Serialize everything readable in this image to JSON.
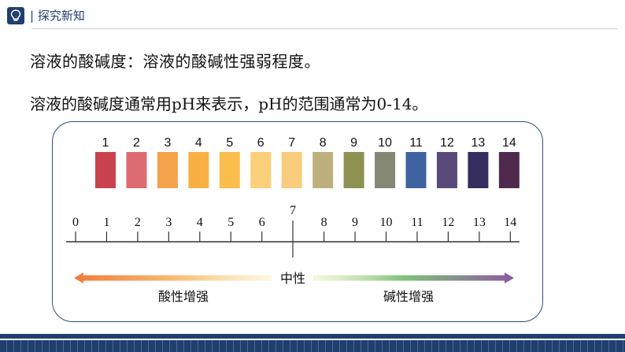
{
  "header": {
    "title": "| 探究新知",
    "icon": "lightbulb-icon"
  },
  "content": {
    "line1": "溶液的酸碱度：溶液的酸碱性强弱程度。",
    "line2": "溶液的酸碱度通常用pH来表示，pH的范围通常为0-14。"
  },
  "ph_diagram": {
    "strips": [
      {
        "label": "1",
        "color": "#c9434f"
      },
      {
        "label": "2",
        "color": "#de6b72"
      },
      {
        "label": "3",
        "color": "#f4a24b"
      },
      {
        "label": "4",
        "color": "#f8b044"
      },
      {
        "label": "5",
        "color": "#fbbd4c"
      },
      {
        "label": "6",
        "color": "#fcd07a"
      },
      {
        "label": "7",
        "color": "#f9cc7e"
      },
      {
        "label": "8",
        "color": "#beb07d"
      },
      {
        "label": "9",
        "color": "#8d9152"
      },
      {
        "label": "10",
        "color": "#848774"
      },
      {
        "label": "11",
        "color": "#3f63a0"
      },
      {
        "label": "12",
        "color": "#594a7b"
      },
      {
        "label": "13",
        "color": "#362e5e"
      },
      {
        "label": "14",
        "color": "#4e2a4e"
      }
    ],
    "axis_ticks": [
      "0",
      "1",
      "2",
      "3",
      "4",
      "5",
      "6",
      "7",
      "8",
      "9",
      "10",
      "11",
      "12",
      "13",
      "14"
    ],
    "neutral_label": "中性",
    "acid_label": "酸性增强",
    "base_label": "碱性增强",
    "colors": {
      "acid_arrow": "#f07a3a",
      "base_arrow": "#8d5aa0",
      "neutral_glow": "#f7f1c6",
      "base_mid": "#7fc17a"
    }
  }
}
